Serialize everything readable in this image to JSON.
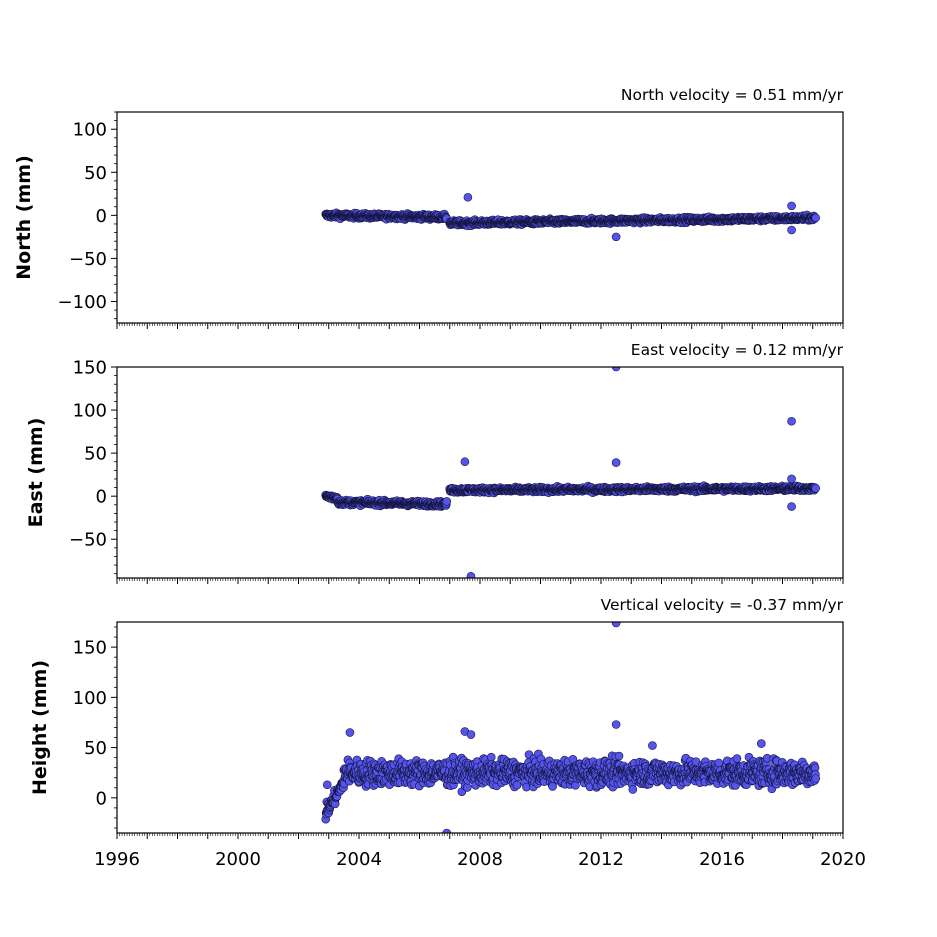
{
  "chart_data": [
    {
      "type": "scatter",
      "title": "North velocity = 0.51 mm/yr",
      "ylabel": "North (mm)",
      "xlim": [
        1996,
        2020
      ],
      "ylim": [
        -125,
        120
      ],
      "yticks": [
        100,
        50,
        0,
        -50,
        -100
      ],
      "ytick_labels": [
        "100",
        "50",
        "0",
        "−50",
        "−100"
      ],
      "marker_color": "#5555ee",
      "segments": [
        {
          "x": [
            2002.9,
            2006.9
          ],
          "y": [
            0,
            -2
          ],
          "noise": 2.0
        },
        {
          "x": [
            2007.0,
            2019.1
          ],
          "y": [
            -9,
            -3
          ],
          "noise": 2.0
        }
      ],
      "outliers": [
        {
          "x": 2007.6,
          "y": 21
        },
        {
          "x": 2012.5,
          "y": -25
        },
        {
          "x": 2018.3,
          "y": 11
        },
        {
          "x": 2018.3,
          "y": -17
        }
      ]
    },
    {
      "type": "scatter",
      "title": "East velocity = 0.12 mm/yr",
      "ylabel": "East (mm)",
      "xlim": [
        1996,
        2020
      ],
      "ylim": [
        -95,
        150
      ],
      "yticks": [
        150,
        100,
        50,
        0,
        -50
      ],
      "ytick_labels": [
        "150",
        "100",
        "50",
        "0",
        "−50"
      ],
      "marker_color": "#5555ee",
      "segments": [
        {
          "x": [
            2002.9,
            2003.3
          ],
          "y": [
            0,
            -2
          ],
          "noise": 2.0
        },
        {
          "x": [
            2003.3,
            2006.9
          ],
          "y": [
            -7,
            -9
          ],
          "noise": 2.0
        },
        {
          "x": [
            2007.0,
            2019.1
          ],
          "y": [
            7,
            9
          ],
          "noise": 2.0
        }
      ],
      "outliers": [
        {
          "x": 2007.5,
          "y": 40
        },
        {
          "x": 2007.7,
          "y": -93
        },
        {
          "x": 2012.5,
          "y": 150
        },
        {
          "x": 2012.5,
          "y": 39
        },
        {
          "x": 2018.3,
          "y": 87
        },
        {
          "x": 2018.3,
          "y": 20
        },
        {
          "x": 2018.3,
          "y": -12
        }
      ]
    },
    {
      "type": "scatter",
      "title": "Vertical velocity = -0.37 mm/yr",
      "ylabel": "Height (mm)",
      "xlim": [
        1996,
        2020
      ],
      "ylim": [
        -35,
        175
      ],
      "yticks": [
        150,
        100,
        50,
        0
      ],
      "ytick_labels": [
        "150",
        "100",
        "50",
        "0"
      ],
      "marker_color": "#5555ee",
      "segments": [
        {
          "x": [
            2002.9,
            2003.5
          ],
          "y": [
            -15,
            15
          ],
          "noise": 5.0
        },
        {
          "x": [
            2003.5,
            2019.1
          ],
          "y": [
            25,
            25
          ],
          "noise": 9.0
        }
      ],
      "outliers": [
        {
          "x": 2002.95,
          "y": 13
        },
        {
          "x": 2003.7,
          "y": 65
        },
        {
          "x": 2006.9,
          "y": -35
        },
        {
          "x": 2007.5,
          "y": 66
        },
        {
          "x": 2007.7,
          "y": 63
        },
        {
          "x": 2012.5,
          "y": 174
        },
        {
          "x": 2012.5,
          "y": 73
        },
        {
          "x": 2013.7,
          "y": 52
        },
        {
          "x": 2017.3,
          "y": 54
        }
      ]
    }
  ],
  "xaxis": {
    "ticks": [
      1996,
      2000,
      2004,
      2008,
      2012,
      2016,
      2020
    ],
    "tick_labels": [
      "1996",
      "2000",
      "2004",
      "2008",
      "2012",
      "2016",
      "2020"
    ]
  }
}
